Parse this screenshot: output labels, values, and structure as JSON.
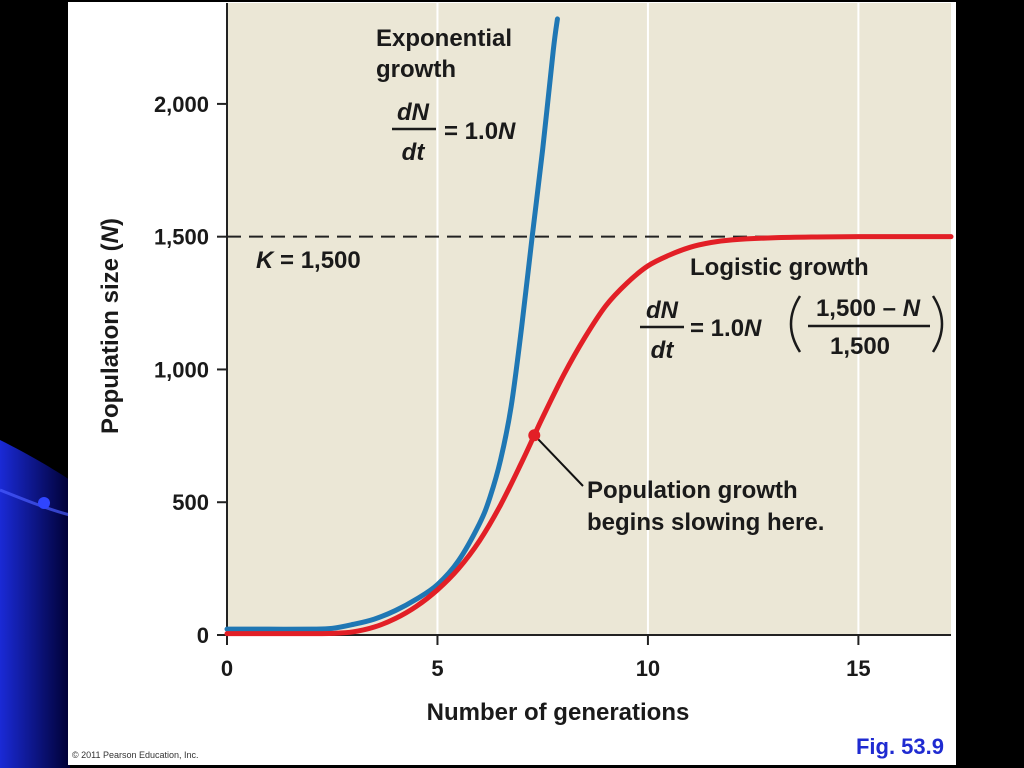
{
  "colors": {
    "plot_bg": "#ebe7d6",
    "exponential": "#1f77b4",
    "logistic": "#e21f26",
    "axis": "#222222",
    "fig_label": "#1f2bd1"
  },
  "figure_label": "Fig. 53.9",
  "copyright": "© 2011 Pearson Education, Inc.",
  "chart_data": {
    "type": "line",
    "title": "",
    "xlabel": "Number of generations",
    "ylabel_parts": [
      "Population size (",
      "N",
      ")"
    ],
    "xlim": [
      0,
      17.2
    ],
    "ylim": [
      0,
      2380
    ],
    "xticks": [
      {
        "value": 0,
        "label": "0"
      },
      {
        "value": 5,
        "label": "5"
      },
      {
        "value": 10,
        "label": "10"
      },
      {
        "value": 15,
        "label": "15"
      }
    ],
    "yticks": [
      {
        "value": 0,
        "label": "0"
      },
      {
        "value": 500,
        "label": "500"
      },
      {
        "value": 1000,
        "label": "1,000"
      },
      {
        "value": 1500,
        "label": "1,500"
      },
      {
        "value": 2000,
        "label": "2,000"
      }
    ],
    "grid": "vertical",
    "carrying_capacity": {
      "value": 1500,
      "label_italic": "K",
      "label_rest": " = 1,500"
    },
    "series": [
      {
        "key": "exponential",
        "x": [
          0,
          1,
          2,
          2.5,
          3,
          3.5,
          4,
          4.5,
          5,
          5.5,
          6,
          6.25,
          6.5,
          6.75,
          7,
          7.25,
          7.5,
          7.75,
          7.85
        ],
        "y": [
          22,
          22,
          22,
          25,
          40,
          60,
          92,
          135,
          190,
          280,
          420,
          520,
          660,
          860,
          1160,
          1500,
          1830,
          2200,
          2320
        ]
      },
      {
        "key": "logistic",
        "x": [
          0,
          1,
          2,
          2.5,
          3,
          3.5,
          4,
          4.5,
          5,
          5.5,
          6,
          6.5,
          7,
          7.3,
          7.5,
          8,
          8.5,
          9,
          9.5,
          10,
          10.5,
          11,
          11.5,
          12,
          13,
          14,
          15,
          16,
          17.2
        ],
        "y": [
          5,
          5,
          5,
          6,
          12,
          30,
          62,
          108,
          170,
          250,
          355,
          490,
          650,
          752,
          820,
          980,
          1120,
          1240,
          1325,
          1390,
          1430,
          1460,
          1478,
          1488,
          1496,
          1499,
          1500,
          1500,
          1500
        ]
      }
    ],
    "marker": {
      "x": 7.3,
      "y": 752
    },
    "annotations": {
      "exponential_label": [
        "Exponential",
        "growth"
      ],
      "logistic_label": "Logistic growth",
      "slowing_note": [
        "Population growth",
        "begins slowing here."
      ],
      "exp_formula": {
        "num": "dN",
        "den": "dt",
        "rhs": "= 1.0",
        "var": "N"
      },
      "log_formula": {
        "num": "dN",
        "den": "dt",
        "rhs": "= 1.0",
        "var": "N",
        "frac_num_a": "1,500 – ",
        "frac_num_var": "N",
        "frac_den": "1,500"
      }
    }
  }
}
